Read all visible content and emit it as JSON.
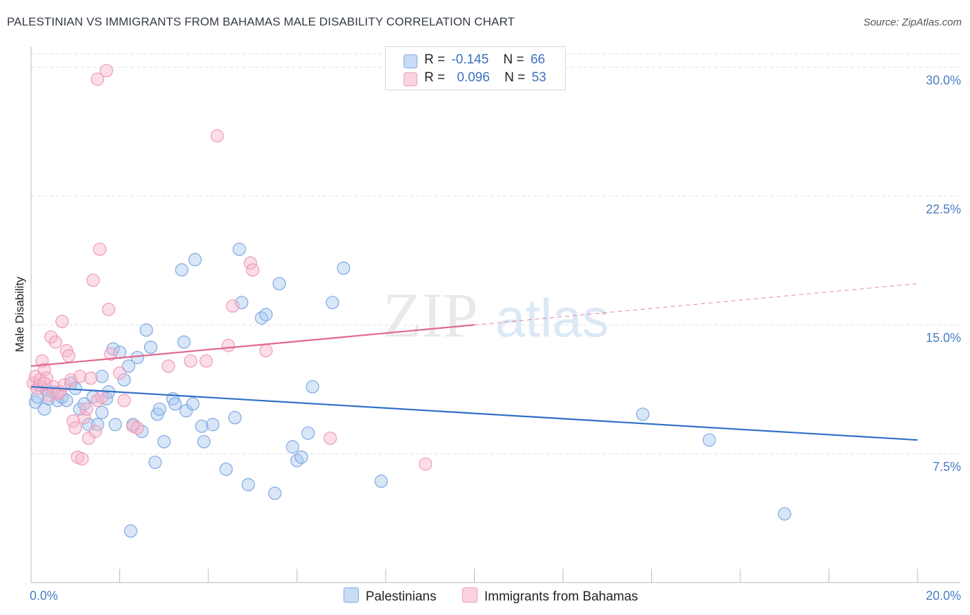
{
  "title": "PALESTINIAN VS IMMIGRANTS FROM BAHAMAS MALE DISABILITY CORRELATION CHART",
  "source": "Source: ZipAtlas.com",
  "watermark": {
    "zip": "ZIP",
    "atlas": "atlas"
  },
  "legend": {
    "palestinians": {
      "r_label": "R =",
      "r_value": "-0.145",
      "n_label": "N =",
      "n_value": "66",
      "color": "#a8c8f0"
    },
    "bahamas": {
      "r_label": "R =",
      "r_value": "0.096",
      "n_label": "N =",
      "n_value": "53",
      "color": "#f7b6cb"
    }
  },
  "chart_data": {
    "type": "scatter",
    "title": "PALESTINIAN VS IMMIGRANTS FROM BAHAMAS MALE DISABILITY CORRELATION CHART",
    "xlabel": "",
    "ylabel": "Male Disability",
    "xlim": [
      0,
      20
    ],
    "ylim": [
      0,
      30.7
    ],
    "x_tick_labels": [
      "0.0%",
      "20.0%"
    ],
    "y_ticks": [
      7.5,
      15.0,
      22.5,
      30.0
    ],
    "y_tick_labels": [
      "7.5%",
      "15.0%",
      "22.5%",
      "30.0%"
    ],
    "grid": true,
    "legend_position": "top-center",
    "series": [
      {
        "name": "Palestinians",
        "color": "#6f9fdc",
        "line_color": "#2f6fc7",
        "trend": {
          "x": [
            0,
            20
          ],
          "y": [
            11.4,
            8.3
          ],
          "dashed_from": null
        },
        "points": [
          [
            0.1,
            10.5
          ],
          [
            0.2,
            11.5
          ],
          [
            0.3,
            10.1
          ],
          [
            0.4,
            10.7
          ],
          [
            0.5,
            11.1
          ],
          [
            0.6,
            10.6
          ],
          [
            0.7,
            10.8
          ],
          [
            0.8,
            10.6
          ],
          [
            0.9,
            11.6
          ],
          [
            1.0,
            11.3
          ],
          [
            1.1,
            10.1
          ],
          [
            1.2,
            10.4
          ],
          [
            1.3,
            9.2
          ],
          [
            1.4,
            10.8
          ],
          [
            1.5,
            9.2
          ],
          [
            1.6,
            12.0
          ],
          [
            1.6,
            9.9
          ],
          [
            1.7,
            10.7
          ],
          [
            1.75,
            11.1
          ],
          [
            1.85,
            13.6
          ],
          [
            1.9,
            9.2
          ],
          [
            2.0,
            13.4
          ],
          [
            2.1,
            11.8
          ],
          [
            2.2,
            12.6
          ],
          [
            2.25,
            3.0
          ],
          [
            2.3,
            9.2
          ],
          [
            2.4,
            13.1
          ],
          [
            2.5,
            8.8
          ],
          [
            2.6,
            14.7
          ],
          [
            2.7,
            13.7
          ],
          [
            2.8,
            7.0
          ],
          [
            2.85,
            9.8
          ],
          [
            2.9,
            10.1
          ],
          [
            3.0,
            8.2
          ],
          [
            3.2,
            10.7
          ],
          [
            3.25,
            10.4
          ],
          [
            3.4,
            18.2
          ],
          [
            3.45,
            14.0
          ],
          [
            3.5,
            10.0
          ],
          [
            3.65,
            10.4
          ],
          [
            3.7,
            18.8
          ],
          [
            3.85,
            9.1
          ],
          [
            3.9,
            8.2
          ],
          [
            4.1,
            9.2
          ],
          [
            4.4,
            6.6
          ],
          [
            4.6,
            9.6
          ],
          [
            4.7,
            19.4
          ],
          [
            4.75,
            16.3
          ],
          [
            4.9,
            5.7
          ],
          [
            5.2,
            15.4
          ],
          [
            5.3,
            15.6
          ],
          [
            5.5,
            5.2
          ],
          [
            5.6,
            17.4
          ],
          [
            5.9,
            7.9
          ],
          [
            6.0,
            7.1
          ],
          [
            6.1,
            7.3
          ],
          [
            6.25,
            8.7
          ],
          [
            6.35,
            11.4
          ],
          [
            6.8,
            16.3
          ],
          [
            7.05,
            18.3
          ],
          [
            7.9,
            5.9
          ],
          [
            0.15,
            10.8
          ],
          [
            0.35,
            11.2
          ],
          [
            13.8,
            9.8
          ],
          [
            15.3,
            8.3
          ],
          [
            17.0,
            4.0
          ]
        ]
      },
      {
        "name": "Immigrants from Bahamas",
        "color": "#f08db0",
        "line_color": "#e0678f",
        "trend": {
          "x": [
            0,
            20
          ],
          "y": [
            12.6,
            17.4
          ],
          "dashed_from": 10.0
        },
        "points": [
          [
            0.05,
            11.6
          ],
          [
            0.1,
            12.0
          ],
          [
            0.15,
            11.3
          ],
          [
            0.2,
            11.5
          ],
          [
            0.25,
            12.9
          ],
          [
            0.3,
            12.4
          ],
          [
            0.35,
            11.9
          ],
          [
            0.4,
            10.9
          ],
          [
            0.45,
            14.3
          ],
          [
            0.5,
            11.4
          ],
          [
            0.55,
            14.0
          ],
          [
            0.6,
            11.0
          ],
          [
            0.65,
            11.1
          ],
          [
            0.7,
            15.2
          ],
          [
            0.75,
            11.5
          ],
          [
            0.8,
            13.5
          ],
          [
            0.85,
            13.2
          ],
          [
            0.9,
            11.8
          ],
          [
            0.95,
            9.4
          ],
          [
            1.0,
            9.0
          ],
          [
            1.05,
            7.3
          ],
          [
            1.1,
            12.0
          ],
          [
            1.15,
            7.2
          ],
          [
            1.2,
            9.6
          ],
          [
            1.25,
            10.1
          ],
          [
            1.3,
            8.4
          ],
          [
            1.35,
            11.9
          ],
          [
            1.4,
            17.6
          ],
          [
            1.45,
            8.8
          ],
          [
            1.5,
            10.6
          ],
          [
            1.55,
            19.4
          ],
          [
            1.6,
            10.8
          ],
          [
            1.5,
            29.3
          ],
          [
            1.7,
            29.8
          ],
          [
            1.75,
            15.9
          ],
          [
            1.8,
            13.3
          ],
          [
            2.0,
            12.2
          ],
          [
            2.1,
            10.6
          ],
          [
            2.3,
            9.1
          ],
          [
            2.4,
            9.0
          ],
          [
            3.1,
            12.6
          ],
          [
            3.6,
            12.9
          ],
          [
            3.95,
            12.9
          ],
          [
            4.2,
            26.0
          ],
          [
            4.45,
            13.8
          ],
          [
            4.55,
            16.1
          ],
          [
            4.95,
            18.6
          ],
          [
            5.0,
            18.2
          ],
          [
            5.3,
            13.5
          ],
          [
            6.75,
            8.4
          ],
          [
            8.9,
            6.9
          ],
          [
            0.2,
            11.8
          ],
          [
            0.3,
            11.6
          ]
        ]
      }
    ]
  },
  "bottom_legend": [
    {
      "label": "Palestinians",
      "color": "#a8c8f0"
    },
    {
      "label": "Immigrants from Bahamas",
      "color": "#f7b6cb"
    }
  ]
}
